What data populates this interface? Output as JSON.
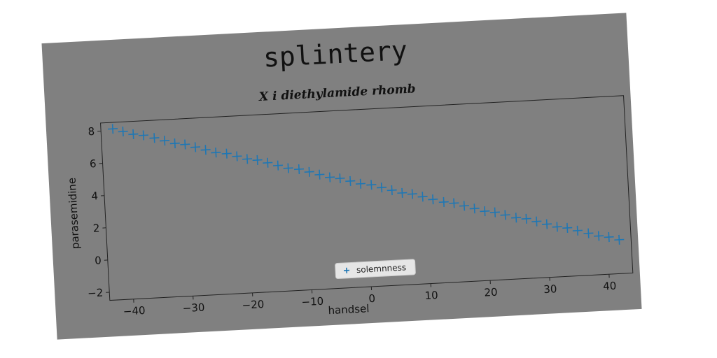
{
  "chart_data": {
    "type": "scatter",
    "suptitle": "splintery",
    "title": "X i diethylamide rhomb",
    "xlabel": "handsel",
    "ylabel": "parasemidine",
    "xlim": [
      -44,
      44
    ],
    "ylim": [
      -2.5,
      8.5
    ],
    "xticks": [
      -40,
      -30,
      -20,
      -10,
      0,
      10,
      20,
      30,
      40
    ],
    "yticks": [
      -2,
      0,
      2,
      4,
      6,
      8
    ],
    "grid": false,
    "legend": {
      "position": "lower-center",
      "entries": [
        "solemnness"
      ]
    },
    "series": [
      {
        "name": "solemnness",
        "marker": "plus",
        "color": "#1f77b4",
        "x": [
          -42,
          -40.3,
          -38.6,
          -36.9,
          -35.1,
          -33.4,
          -31.7,
          -30,
          -28.3,
          -26.6,
          -24.9,
          -23.1,
          -21.4,
          -19.7,
          -18,
          -16.3,
          -14.6,
          -12.9,
          -11.1,
          -9.4,
          -7.7,
          -6,
          -4.3,
          -2.6,
          -0.9,
          0.9,
          2.6,
          4.3,
          6,
          7.7,
          9.4,
          11.1,
          12.9,
          14.6,
          16.3,
          18,
          19.7,
          21.4,
          23.1,
          24.9,
          26.6,
          28.3,
          30,
          31.7,
          33.4,
          35.1,
          36.9,
          38.6,
          40.3,
          42
        ],
        "y": [
          8.1,
          7.9,
          7.7,
          7.6,
          7.4,
          7.2,
          7.0,
          6.9,
          6.7,
          6.5,
          6.3,
          6.2,
          6.0,
          5.8,
          5.7,
          5.5,
          5.3,
          5.1,
          5.0,
          4.8,
          4.6,
          4.4,
          4.3,
          4.1,
          3.9,
          3.8,
          3.6,
          3.4,
          3.2,
          3.1,
          2.9,
          2.7,
          2.5,
          2.4,
          2.2,
          2.0,
          1.8,
          1.7,
          1.5,
          1.3,
          1.2,
          1.0,
          0.8,
          0.6,
          0.5,
          0.3,
          0.1,
          -0.1,
          -0.2,
          -0.4
        ]
      }
    ]
  }
}
